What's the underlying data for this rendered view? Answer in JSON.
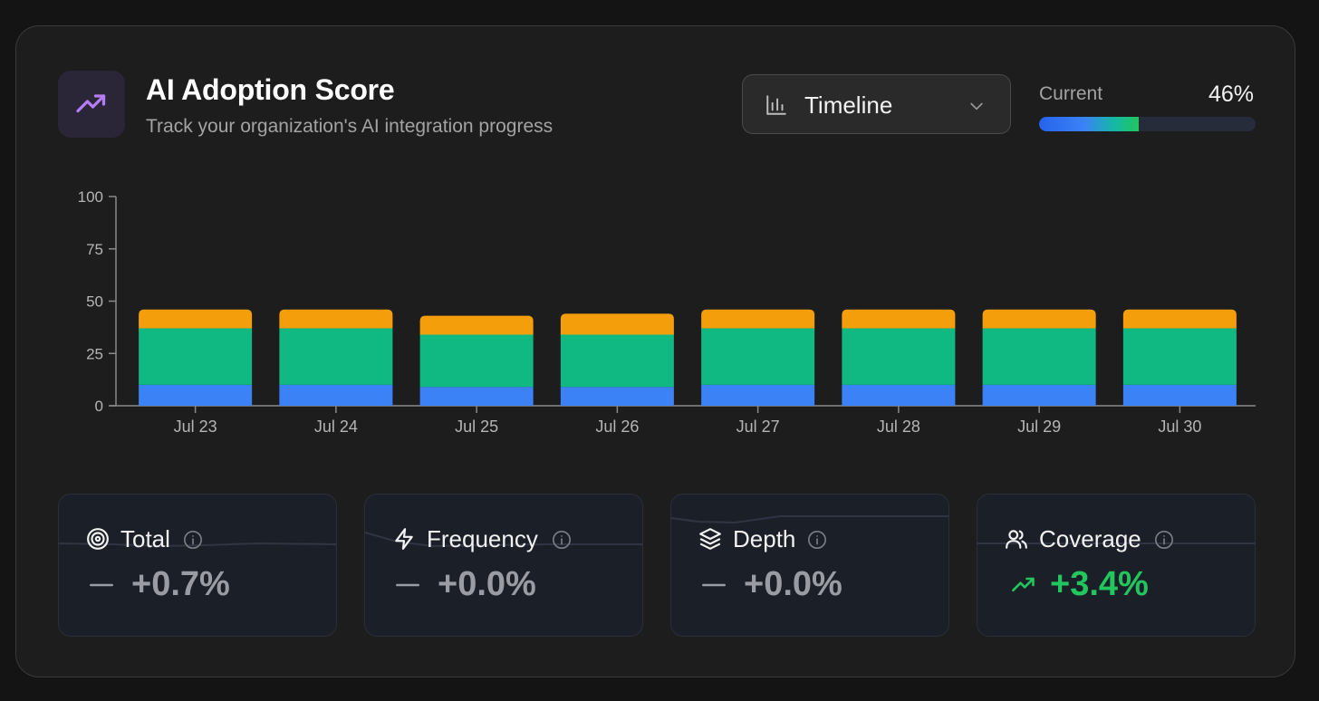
{
  "header": {
    "title": "AI Adoption Score",
    "subtitle": "Track your organization's AI integration progress",
    "icon": "trending-up-icon"
  },
  "view_select": {
    "label": "Timeline",
    "icon": "bar-chart-icon"
  },
  "current": {
    "label": "Current",
    "value": "46%",
    "progress": 0.46
  },
  "colors": {
    "series_blue": "#3b82f6",
    "series_green": "#10b981",
    "series_orange": "#f59e0b",
    "up": "#22c55e",
    "neutral": "#9a9ca3"
  },
  "chart_data": {
    "type": "bar",
    "stacked": true,
    "categories": [
      "Jul 23",
      "Jul 24",
      "Jul 25",
      "Jul 26",
      "Jul 27",
      "Jul 28",
      "Jul 29",
      "Jul 30"
    ],
    "series": [
      {
        "values": [
          10,
          10,
          9,
          9,
          10,
          10,
          10,
          10
        ],
        "color": "#3b82f6"
      },
      {
        "values": [
          27,
          27,
          25,
          25,
          27,
          27,
          27,
          27
        ],
        "color": "#10b981"
      },
      {
        "values": [
          9,
          9,
          9,
          10,
          9,
          9,
          9,
          9
        ],
        "color": "#f59e0b"
      }
    ],
    "y_ticks": [
      0,
      25,
      50,
      75,
      100
    ],
    "ylim": [
      0,
      100
    ],
    "grid": false,
    "title": "",
    "xlabel": "",
    "ylabel": ""
  },
  "stats": [
    {
      "label": "Total",
      "icon": "target-icon",
      "trend_icon": "minus-icon",
      "delta": "+0.7%",
      "direction": "flat"
    },
    {
      "label": "Frequency",
      "icon": "lightning-icon",
      "trend_icon": "minus-icon",
      "delta": "+0.0%",
      "direction": "flat"
    },
    {
      "label": "Depth",
      "icon": "layers-icon",
      "trend_icon": "minus-icon",
      "delta": "+0.0%",
      "direction": "flat"
    },
    {
      "label": "Coverage",
      "icon": "users-icon",
      "trend_icon": "trending-up-icon",
      "delta": "+3.4%",
      "direction": "up"
    }
  ]
}
